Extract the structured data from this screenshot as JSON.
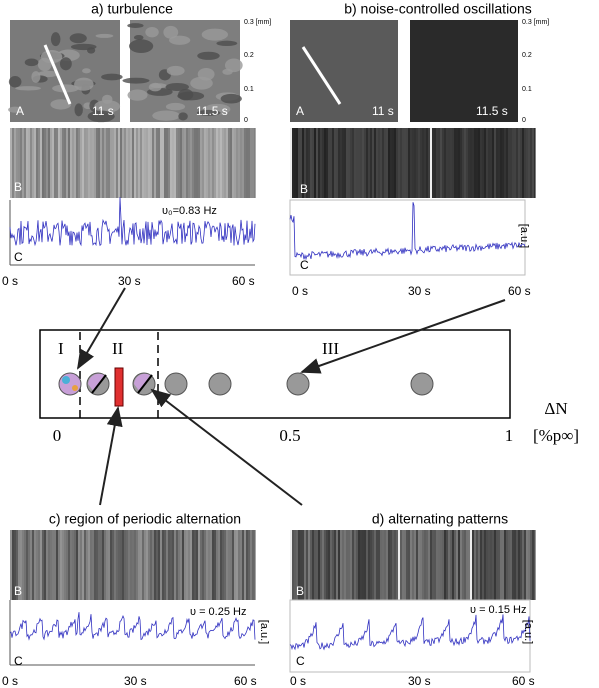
{
  "panel_a": {
    "title": "a) turbulence",
    "image_label": "A",
    "time_1": "11 s",
    "time_2": "11.5 s",
    "scale": [
      "0.3 [mm]",
      "0.2",
      "0.1",
      "0"
    ],
    "strip_label": "B",
    "trace_label": "C",
    "frequency": "υ₀=0.83 Hz",
    "time_axis": [
      "0 s",
      "30 s",
      "60 s"
    ]
  },
  "panel_b": {
    "title": "b) noise-controlled oscillations",
    "image_label": "A",
    "time_1": "11 s",
    "time_2": "11.5 s",
    "scale": [
      "0.3 [mm]",
      "0.2",
      "0.1",
      "0"
    ],
    "strip_label": "B",
    "trace_label": "C",
    "unit": "[a.u.]",
    "time_axis": [
      "0 s",
      "30 s",
      "60 s"
    ]
  },
  "diagram": {
    "regions": [
      "I",
      "II",
      "III"
    ],
    "axis_ticks": [
      "0",
      "0.5",
      "1"
    ],
    "axis_title": "ΔN",
    "axis_unit": "[%p∞]"
  },
  "panel_c": {
    "title": "c) region of periodic alternation",
    "strip_label": "B",
    "trace_label": "C",
    "frequency": "υ = 0.25 Hz",
    "unit": "[a.u.]",
    "time_axis": [
      "0 s",
      "30 s",
      "60 s"
    ]
  },
  "panel_d": {
    "title": "d) alternating patterns",
    "strip_label": "B",
    "trace_label": "C",
    "frequency": "υ = 0.15 Hz",
    "unit": "[a.u.]",
    "time_axis": [
      "0 s",
      "30 s",
      "60 s"
    ]
  }
}
